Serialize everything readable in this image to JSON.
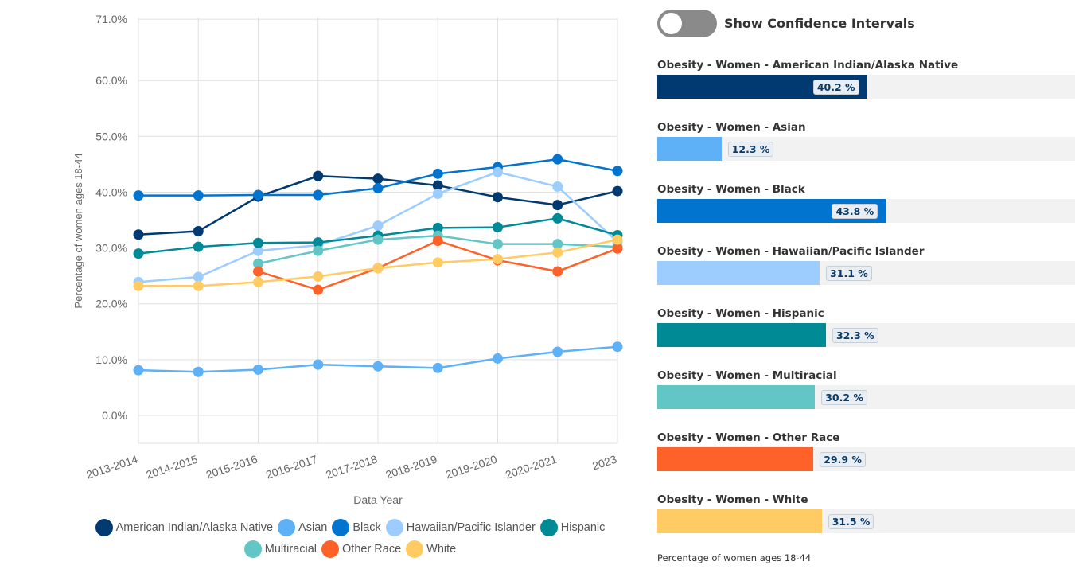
{
  "chart_data": {
    "type": "line",
    "xlabel": "Data Year",
    "ylabel": "Percentage of women ages 18-44",
    "categories": [
      "2013-2014",
      "2014-2015",
      "2015-2016",
      "2016-2017",
      "2017-2018",
      "2018-2019",
      "2019-2020",
      "2020-2021",
      "2023"
    ],
    "yticks": [
      0,
      10,
      20,
      30,
      40,
      50,
      60,
      71
    ],
    "ytick_labels": [
      "0.0%",
      "10.0%",
      "20.0%",
      "30.0%",
      "40.0%",
      "50.0%",
      "60.0%",
      "71.0%"
    ],
    "ylim": [
      -5,
      71
    ],
    "grid": true,
    "legend_position": "bottom",
    "series": [
      {
        "name": "American Indian/Alaska Native",
        "color": "#003a70",
        "values": [
          32.4,
          33.0,
          39.2,
          42.9,
          42.4,
          41.2,
          39.1,
          37.7,
          40.2
        ]
      },
      {
        "name": "Asian",
        "color": "#5eb0f7",
        "values": [
          8.1,
          7.8,
          8.2,
          9.1,
          8.8,
          8.5,
          10.2,
          11.4,
          12.3
        ]
      },
      {
        "name": "Black",
        "color": "#0074cf",
        "values": [
          39.4,
          39.4,
          39.5,
          39.5,
          40.7,
          43.3,
          44.5,
          45.9,
          43.8
        ]
      },
      {
        "name": "Hawaiian/Pacific Islander",
        "color": "#9dcdff",
        "values": [
          23.9,
          24.8,
          29.5,
          30.5,
          34.0,
          39.7,
          43.6,
          41.0,
          31.1
        ]
      },
      {
        "name": "Hispanic",
        "color": "#008a96",
        "values": [
          29.0,
          30.2,
          30.9,
          31.0,
          32.2,
          33.6,
          33.7,
          35.3,
          32.3
        ]
      },
      {
        "name": "Multiracial",
        "color": "#62c6c6",
        "values": [
          null,
          null,
          27.2,
          29.5,
          31.5,
          32.2,
          30.7,
          30.7,
          30.2
        ]
      },
      {
        "name": "Other Race",
        "color": "#ff6229",
        "values": [
          null,
          null,
          25.8,
          22.5,
          26.4,
          31.3,
          27.8,
          25.8,
          29.9
        ]
      },
      {
        "name": "White",
        "color": "#ffcb62",
        "values": [
          23.2,
          23.2,
          23.9,
          24.9,
          26.4,
          27.4,
          28.0,
          29.2,
          31.5
        ]
      }
    ]
  },
  "toggle": {
    "label": "Show Confidence Intervals",
    "on": false
  },
  "bars": {
    "max": 80,
    "items": [
      {
        "title": "Obesity - Women - American Indian/Alaska Native",
        "value": 40.2,
        "label": "40.2 %",
        "color": "#003a70"
      },
      {
        "title": "Obesity - Women - Asian",
        "value": 12.3,
        "label": "12.3 %",
        "color": "#5eb0f7"
      },
      {
        "title": "Obesity - Women - Black",
        "value": 43.8,
        "label": "43.8 %",
        "color": "#0074cf"
      },
      {
        "title": "Obesity - Women - Hawaiian/Pacific Islander",
        "value": 31.1,
        "label": "31.1 %",
        "color": "#9dcdff"
      },
      {
        "title": "Obesity - Women - Hispanic",
        "value": 32.3,
        "label": "32.3 %",
        "color": "#008a96"
      },
      {
        "title": "Obesity - Women - Multiracial",
        "value": 30.2,
        "label": "30.2 %",
        "color": "#62c6c6"
      },
      {
        "title": "Obesity - Women - Other Race",
        "value": 29.9,
        "label": "29.9 %",
        "color": "#ff6229"
      },
      {
        "title": "Obesity - Women - White",
        "value": 31.5,
        "label": "31.5 %",
        "color": "#ffcb62"
      }
    ],
    "footnote": "Percentage of women ages 18-44"
  }
}
